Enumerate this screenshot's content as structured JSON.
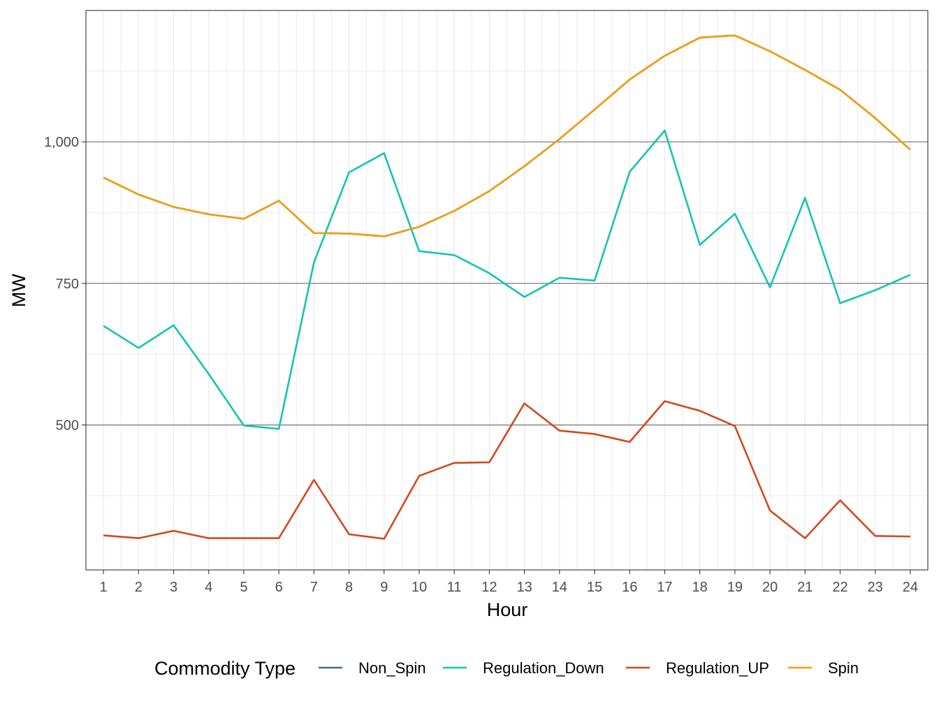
{
  "chart_data": {
    "type": "line",
    "title": "",
    "xlabel": "Hour",
    "ylabel": "MW",
    "x": [
      1,
      2,
      3,
      4,
      5,
      6,
      7,
      8,
      9,
      10,
      11,
      12,
      13,
      14,
      15,
      16,
      17,
      18,
      19,
      20,
      21,
      22,
      23,
      24
    ],
    "x_tick_labels": [
      "1",
      "2",
      "3",
      "4",
      "5",
      "6",
      "7",
      "8",
      "9",
      "10",
      "11",
      "12",
      "13",
      "14",
      "15",
      "16",
      "17",
      "18",
      "19",
      "20",
      "21",
      "22",
      "23",
      "24"
    ],
    "y_ticks": [
      500,
      750,
      1000
    ],
    "y_tick_labels": [
      "500",
      "750",
      "1,000"
    ],
    "xlim": [
      0.5,
      24.5
    ],
    "ylim": [
      244,
      1232
    ],
    "grid": true,
    "legend": {
      "title": "Commodity Type",
      "placement": "bottom"
    },
    "series": [
      {
        "name": "Non_Spin",
        "color": "#456f84",
        "values": [
          937,
          907,
          885,
          872,
          864,
          896,
          839,
          838,
          833,
          850,
          878,
          913,
          957,
          1005,
          1057,
          1110,
          1152,
          1184,
          1188,
          1160,
          1127,
          1092,
          1042,
          986
        ]
      },
      {
        "name": "Regulation_Down",
        "color": "#13c4b2",
        "values": [
          675,
          636,
          676,
          590,
          499,
          493,
          787,
          946,
          980,
          807,
          800,
          768,
          726,
          760,
          755,
          947,
          1020,
          818,
          873,
          743,
          901,
          715,
          738,
          765
        ]
      },
      {
        "name": "Regulation_UP",
        "color": "#d2491f",
        "values": [
          305,
          300,
          313,
          300,
          300,
          300,
          403,
          307,
          299,
          410,
          433,
          434,
          538,
          490,
          484,
          470,
          542,
          525,
          498,
          349,
          300,
          367,
          304,
          303
        ]
      },
      {
        "name": "Spin",
        "color": "#f29e0c",
        "values": [
          937,
          907,
          885,
          872,
          864,
          896,
          839,
          838,
          833,
          850,
          878,
          913,
          957,
          1005,
          1057,
          1110,
          1152,
          1184,
          1188,
          1160,
          1127,
          1092,
          1042,
          986
        ]
      }
    ]
  }
}
